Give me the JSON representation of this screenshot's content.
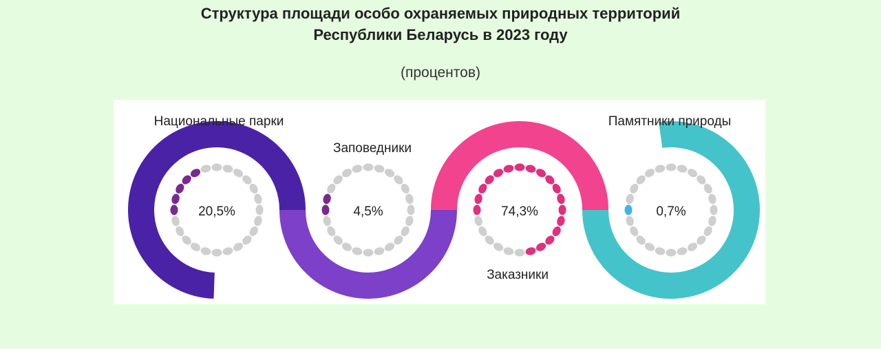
{
  "chart_data": {
    "type": "infographic",
    "title": [
      "Структура площади особо охраняемых природных территорий",
      "Республики Беларусь в 2023 году"
    ],
    "subtitle": "(процентов)",
    "categories": [
      "Национальные парки",
      "Заповедники",
      "Заказники",
      "Памятники природы"
    ],
    "values": [
      20.5,
      4.5,
      74.3,
      0.7
    ],
    "value_labels": [
      "20,5%",
      "4,5%",
      "74,3%",
      "0,7%"
    ],
    "band_colors": [
      "#4a22a6",
      "#7d40c8",
      "#f2438f",
      "#45c3ca"
    ],
    "dot_colors": [
      "#7a2a8e",
      "#7a2a8e",
      "#e0307f",
      "#3fb4e8"
    ]
  }
}
